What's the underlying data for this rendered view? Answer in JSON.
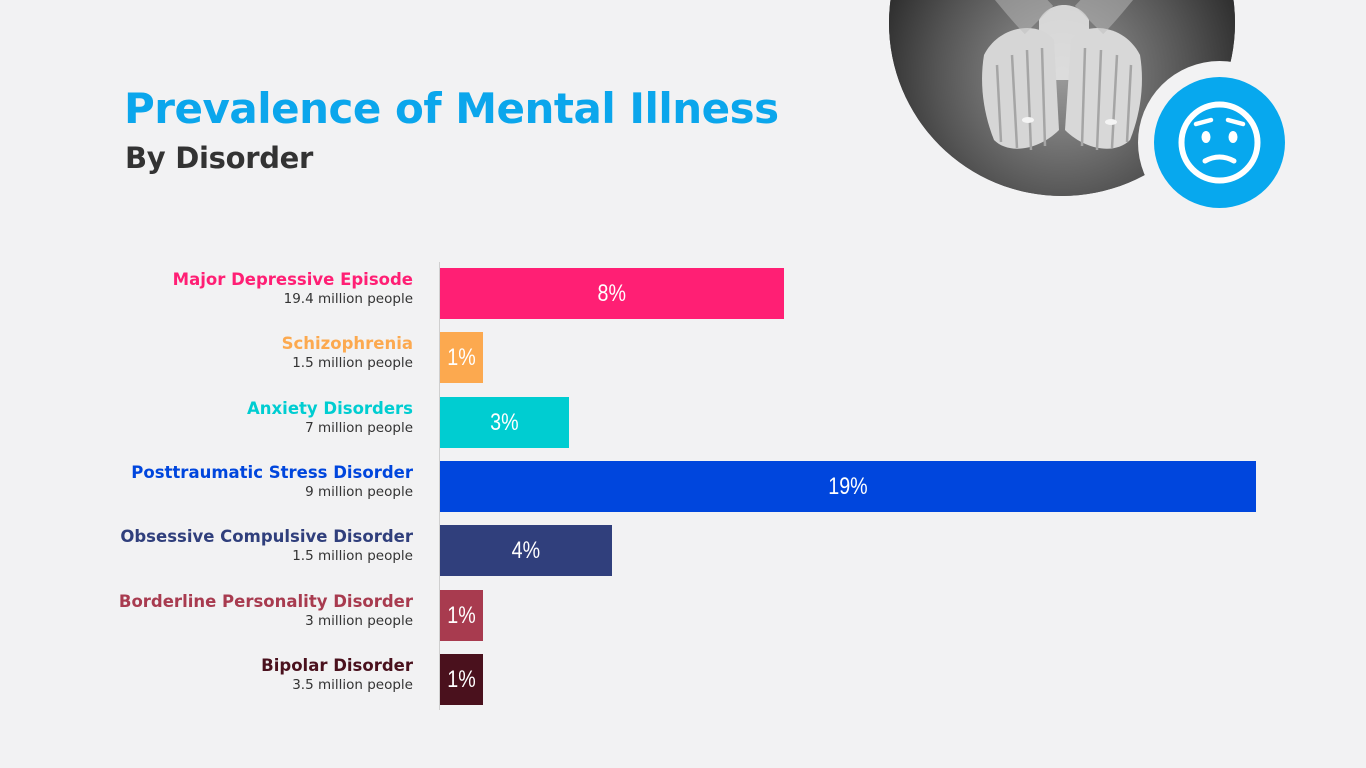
{
  "header": {
    "title": "Prevalence of Mental Illness",
    "subtitle": "By Disorder"
  },
  "colors": {
    "title": "#0ba6ec",
    "subtitle": "#333333",
    "badge": "#07a8ee"
  },
  "icons": {
    "photo": "hands-on-belly-photo",
    "badge": "worried-face-icon"
  },
  "chart_data": {
    "type": "bar",
    "orientation": "horizontal",
    "title": "Prevalence of Mental Illness",
    "subtitle": "By Disorder",
    "xlim": [
      0,
      19
    ],
    "categories": [
      "Major Depressive Episode",
      "Schizophrenia",
      "Anxiety Disorders",
      "Posttraumatic Stress Disorder",
      "Obsessive Compulsive Disorder",
      "Borderline Personality Disorder",
      "Bipolar Disorder"
    ],
    "values": [
      8,
      1,
      3,
      19,
      4,
      1,
      1
    ],
    "value_labels": [
      "8%",
      "1%",
      "3%",
      "19%",
      "4%",
      "1%",
      "1%"
    ],
    "subtitles": [
      "19.4 million people",
      "1.5 million people",
      "7 million people",
      "9 million people",
      "1.5 million people",
      "3 million people",
      "3.5 million people"
    ],
    "colors": [
      "#ff1f74",
      "#fca94f",
      "#00cdd1",
      "#0046dd",
      "#303f7c",
      "#a83b4f",
      "#4a111d"
    ]
  }
}
